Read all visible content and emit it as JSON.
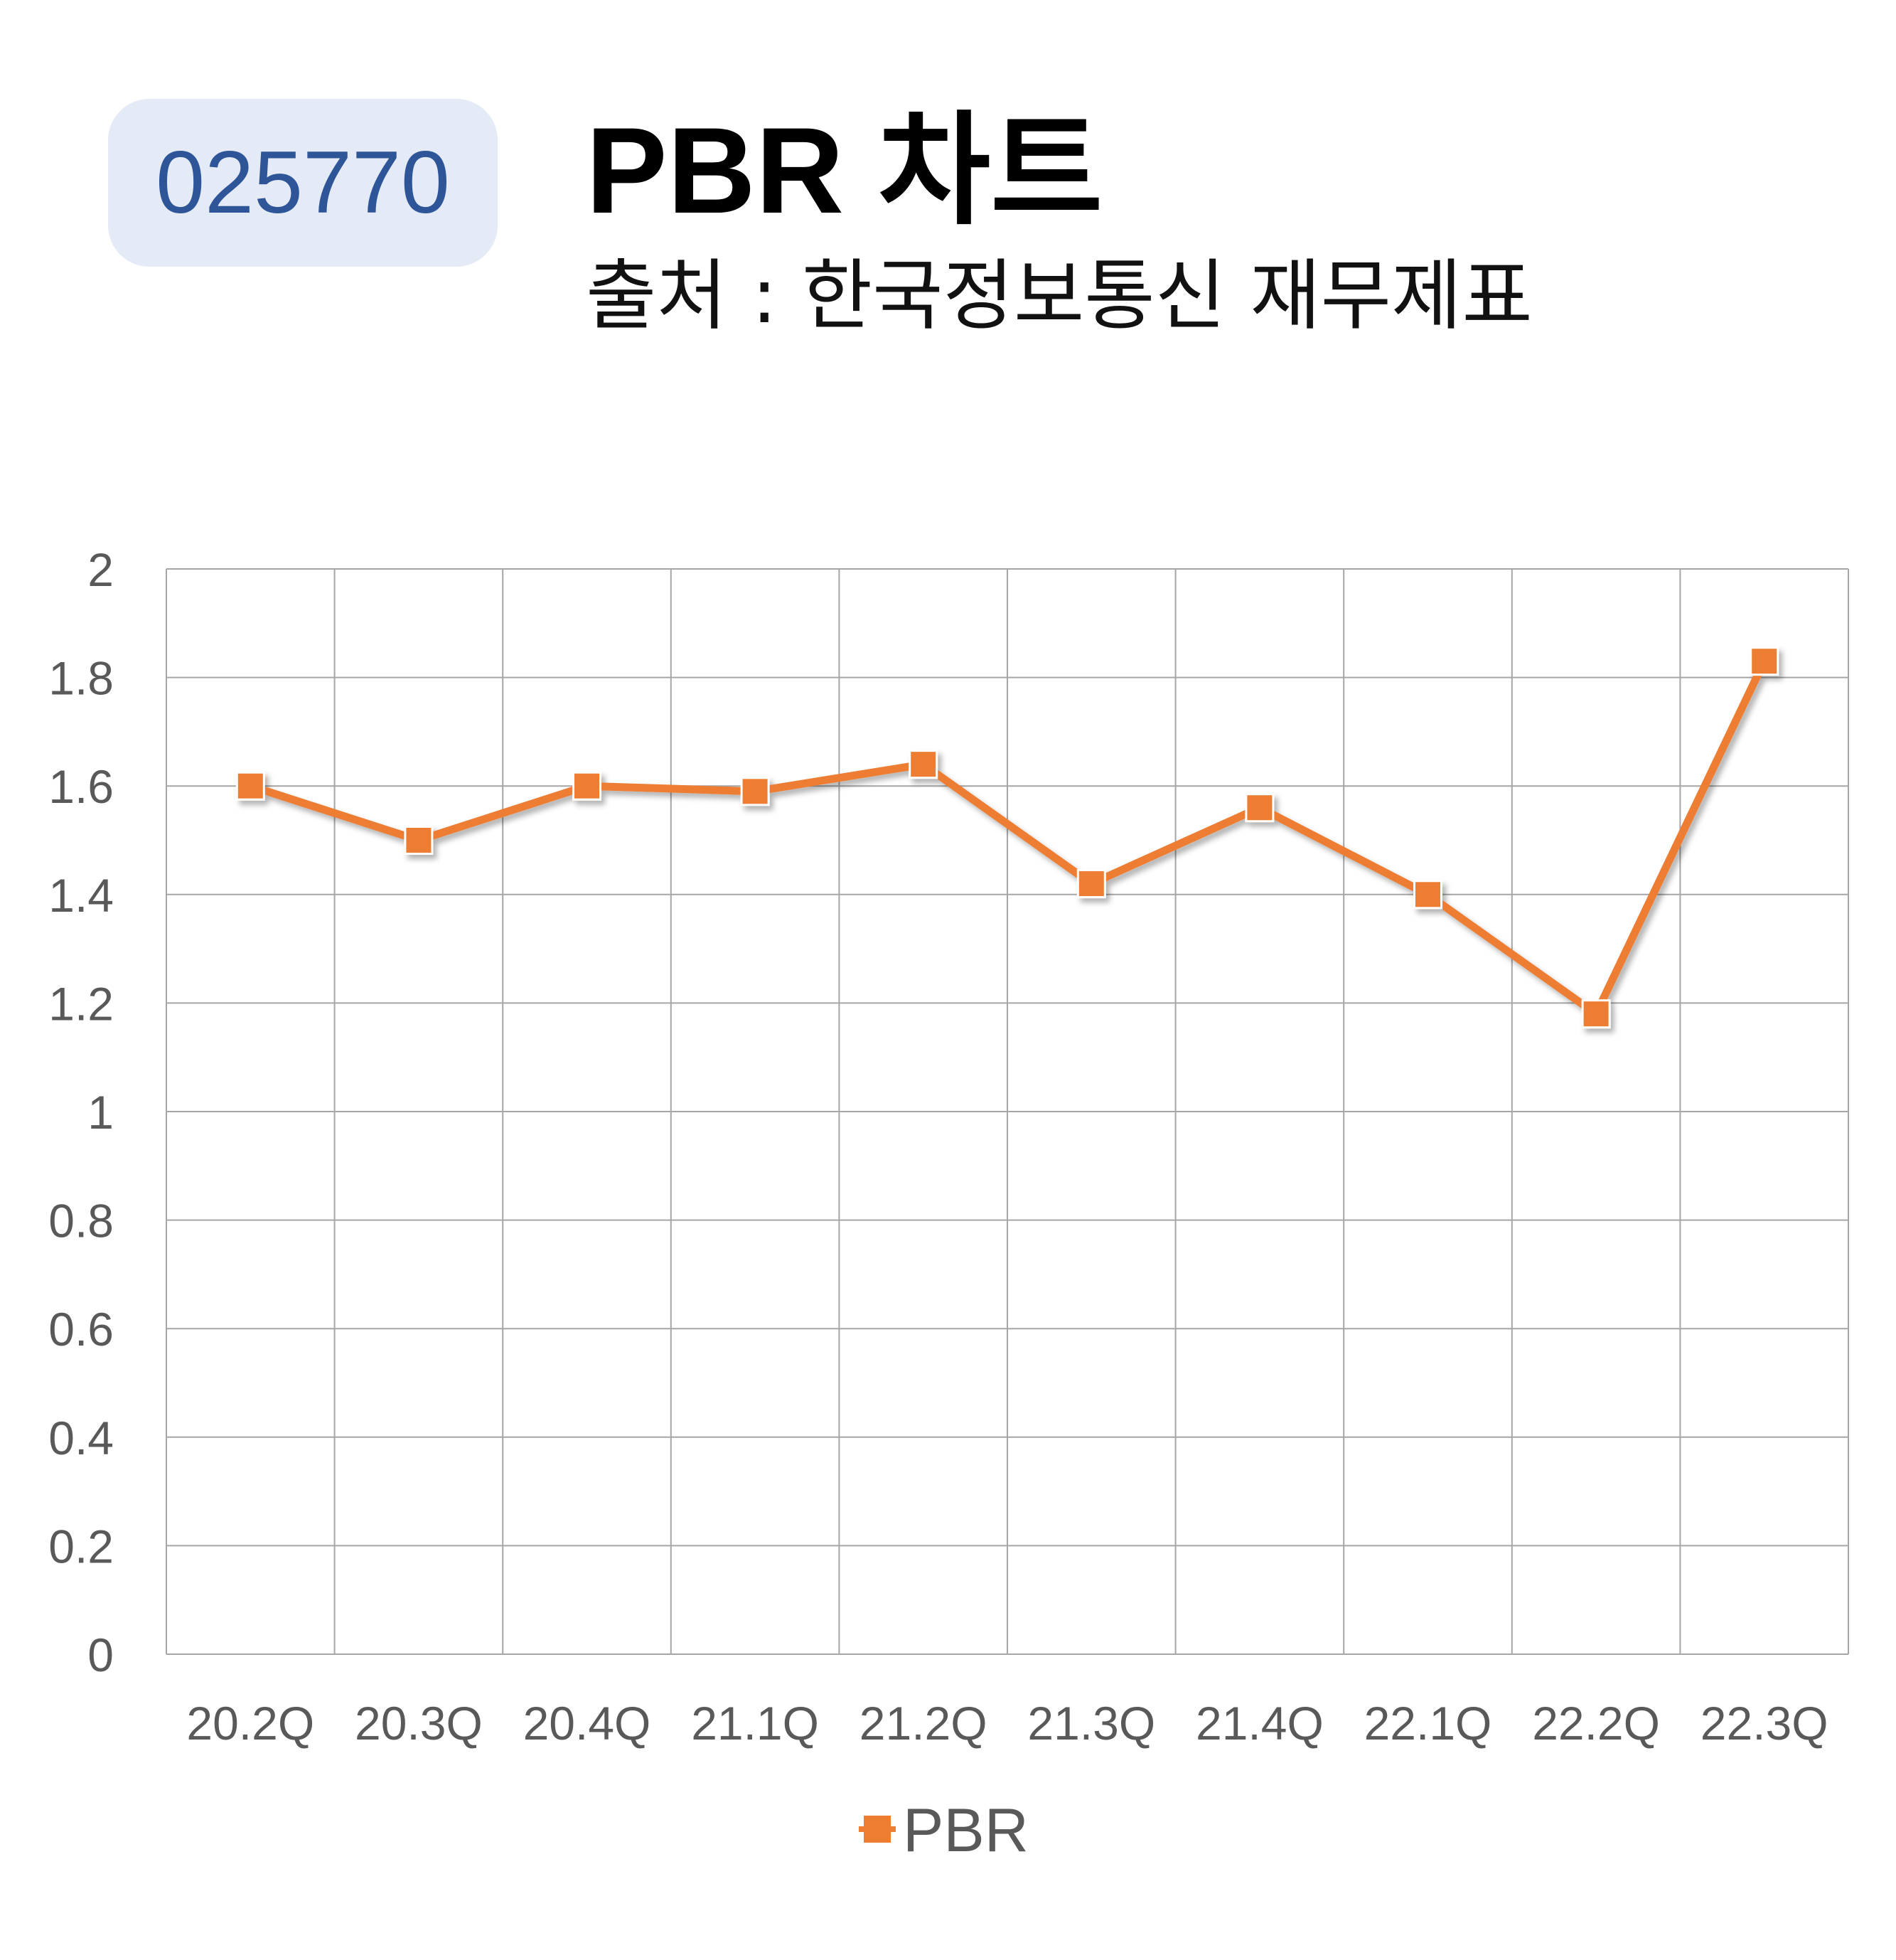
{
  "header": {
    "stock_code": "025770",
    "title": "PBR 차트",
    "subtitle": "출처 : 한국정보통신 재무제표"
  },
  "colors": {
    "series": "#ed7d31",
    "badge_bg": "#e4eaf6",
    "badge_text": "#2e5597",
    "grid": "#a6a6a6"
  },
  "chart_data": {
    "type": "line",
    "categories": [
      "20.2Q",
      "20.3Q",
      "20.4Q",
      "21.1Q",
      "21.2Q",
      "21.3Q",
      "21.4Q",
      "22.1Q",
      "22.2Q",
      "22.3Q"
    ],
    "series": [
      {
        "name": "PBR",
        "values": [
          1.6,
          1.5,
          1.6,
          1.59,
          1.64,
          1.42,
          1.56,
          1.4,
          1.18,
          1.83
        ]
      }
    ],
    "ylim": [
      0,
      2
    ],
    "yticks": [
      "0",
      "0.2",
      "0.4",
      "0.6",
      "0.8",
      "1",
      "1.2",
      "1.4",
      "1.6",
      "1.8",
      "2"
    ],
    "grid": true,
    "legend_position": "bottom",
    "marker": "square"
  }
}
